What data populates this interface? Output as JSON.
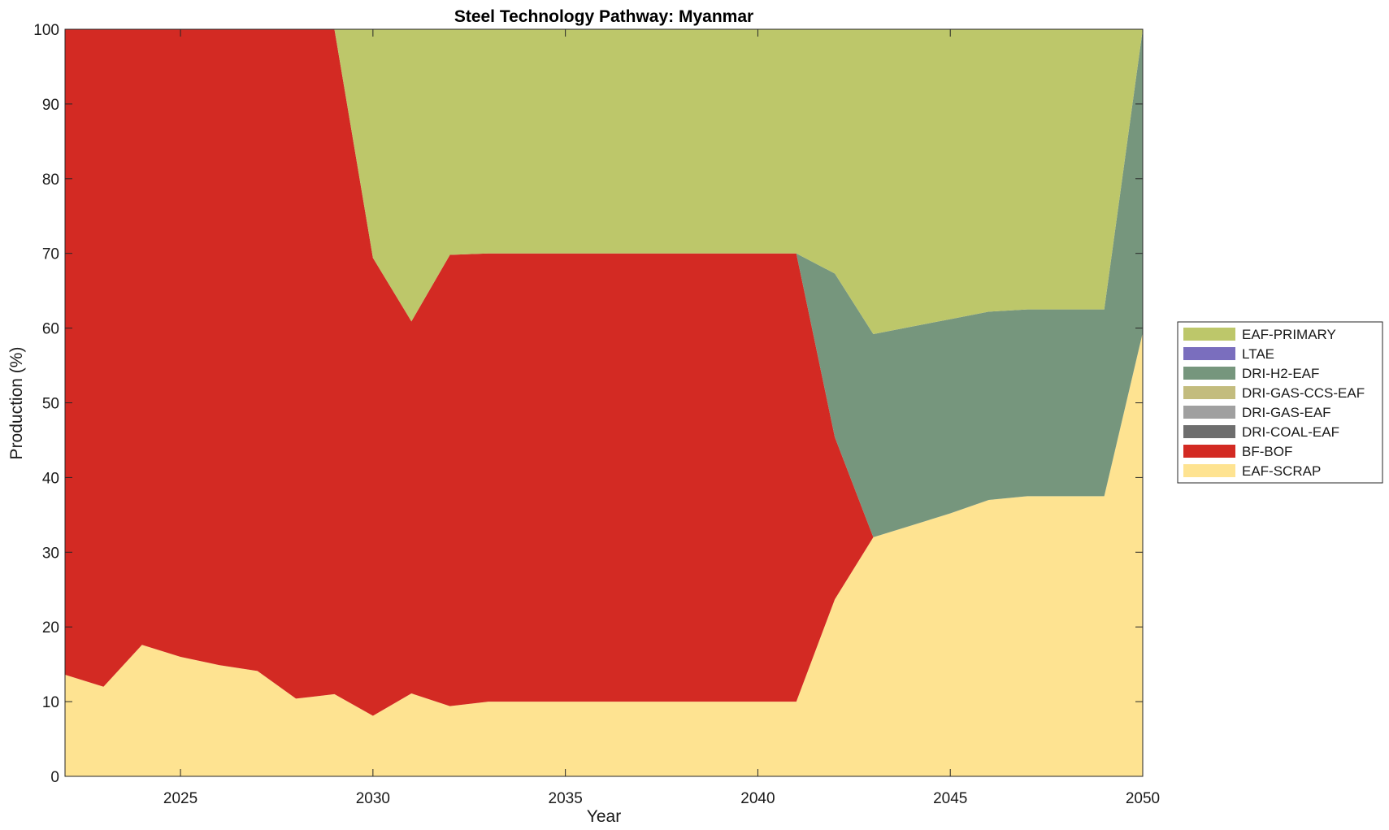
{
  "chart_data": {
    "type": "area",
    "stacked": true,
    "title": "Steel Technology Pathway: Myanmar",
    "xlabel": "Year",
    "ylabel": "Production (%)",
    "xlim": [
      2022,
      2050
    ],
    "ylim": [
      0,
      100
    ],
    "xticks": [
      2025,
      2030,
      2035,
      2040,
      2045,
      2050
    ],
    "yticks": [
      0,
      10,
      20,
      30,
      40,
      50,
      60,
      70,
      80,
      90,
      100
    ],
    "grid": false,
    "legend_position": "right",
    "x": [
      2022,
      2023,
      2024,
      2025,
      2026,
      2027,
      2028,
      2029,
      2030,
      2031,
      2032,
      2033,
      2034,
      2035,
      2036,
      2037,
      2038,
      2039,
      2040,
      2041,
      2042,
      2043,
      2044,
      2045,
      2046,
      2047,
      2048,
      2049,
      2050
    ],
    "series": [
      {
        "name": "EAF-SCRAP",
        "color": "#FEE391",
        "values": [
          13.6,
          12.0,
          17.6,
          16.0,
          14.9,
          14.1,
          10.4,
          11.0,
          8.1,
          11.1,
          9.4,
          10,
          10,
          10,
          10,
          10,
          10,
          10,
          10,
          10,
          23.7,
          32.0,
          33.6,
          35.2,
          37.0,
          37.5,
          37.5,
          37.5,
          59.4
        ]
      },
      {
        "name": "BF-BOF",
        "color": "#D32A23",
        "values": [
          86.4,
          88.0,
          82.4,
          84.0,
          85.1,
          85.9,
          89.6,
          89.0,
          61.3,
          49.8,
          60.4,
          60,
          60,
          60,
          60,
          60,
          60,
          60,
          60,
          60,
          21.7,
          0,
          0,
          0,
          0,
          0,
          0,
          0,
          0
        ]
      },
      {
        "name": "DRI-COAL-EAF",
        "color": "#6E6E6E",
        "values": [
          0,
          0,
          0,
          0,
          0,
          0,
          0,
          0,
          0,
          0,
          0,
          0,
          0,
          0,
          0,
          0,
          0,
          0,
          0,
          0,
          0,
          0,
          0,
          0,
          0,
          0,
          0,
          0,
          0
        ]
      },
      {
        "name": "DRI-GAS-EAF",
        "color": "#A0A0A0",
        "values": [
          0,
          0,
          0,
          0,
          0,
          0,
          0,
          0,
          0,
          0,
          0,
          0,
          0,
          0,
          0,
          0,
          0,
          0,
          0,
          0,
          0,
          0,
          0,
          0,
          0,
          0,
          0,
          0,
          0
        ]
      },
      {
        "name": "DRI-GAS-CCS-EAF",
        "color": "#C3BC7E",
        "values": [
          0,
          0,
          0,
          0,
          0,
          0,
          0,
          0,
          0,
          0,
          0,
          0,
          0,
          0,
          0,
          0,
          0,
          0,
          0,
          0,
          0,
          0,
          0,
          0,
          0,
          0,
          0,
          0,
          0
        ]
      },
      {
        "name": "DRI-H2-EAF",
        "color": "#76967D",
        "values": [
          0,
          0,
          0,
          0,
          0,
          0,
          0,
          0,
          0,
          0,
          0,
          0,
          0,
          0,
          0,
          0,
          0,
          0,
          0,
          0,
          21.9,
          27.2,
          26.6,
          26.0,
          25.2,
          25.0,
          25.0,
          25.0,
          40.6
        ]
      },
      {
        "name": "LTAE",
        "color": "#7A6EBE",
        "values": [
          0,
          0,
          0,
          0,
          0,
          0,
          0,
          0,
          0,
          0,
          0,
          0,
          0,
          0,
          0,
          0,
          0,
          0,
          0,
          0,
          0,
          0,
          0,
          0,
          0,
          0,
          0,
          0,
          0
        ]
      },
      {
        "name": "EAF-PRIMARY",
        "color": "#BDC76A",
        "values": [
          0,
          0,
          0,
          0,
          0,
          0,
          0,
          0,
          30.6,
          39.1,
          30.2,
          30,
          30,
          30,
          30,
          30,
          30,
          30,
          30,
          30,
          32.7,
          40.8,
          39.8,
          38.8,
          37.8,
          37.5,
          37.5,
          37.5,
          0
        ]
      }
    ],
    "legend_order": [
      "EAF-PRIMARY",
      "LTAE",
      "DRI-H2-EAF",
      "DRI-GAS-CCS-EAF",
      "DRI-GAS-EAF",
      "DRI-COAL-EAF",
      "BF-BOF",
      "EAF-SCRAP"
    ]
  }
}
